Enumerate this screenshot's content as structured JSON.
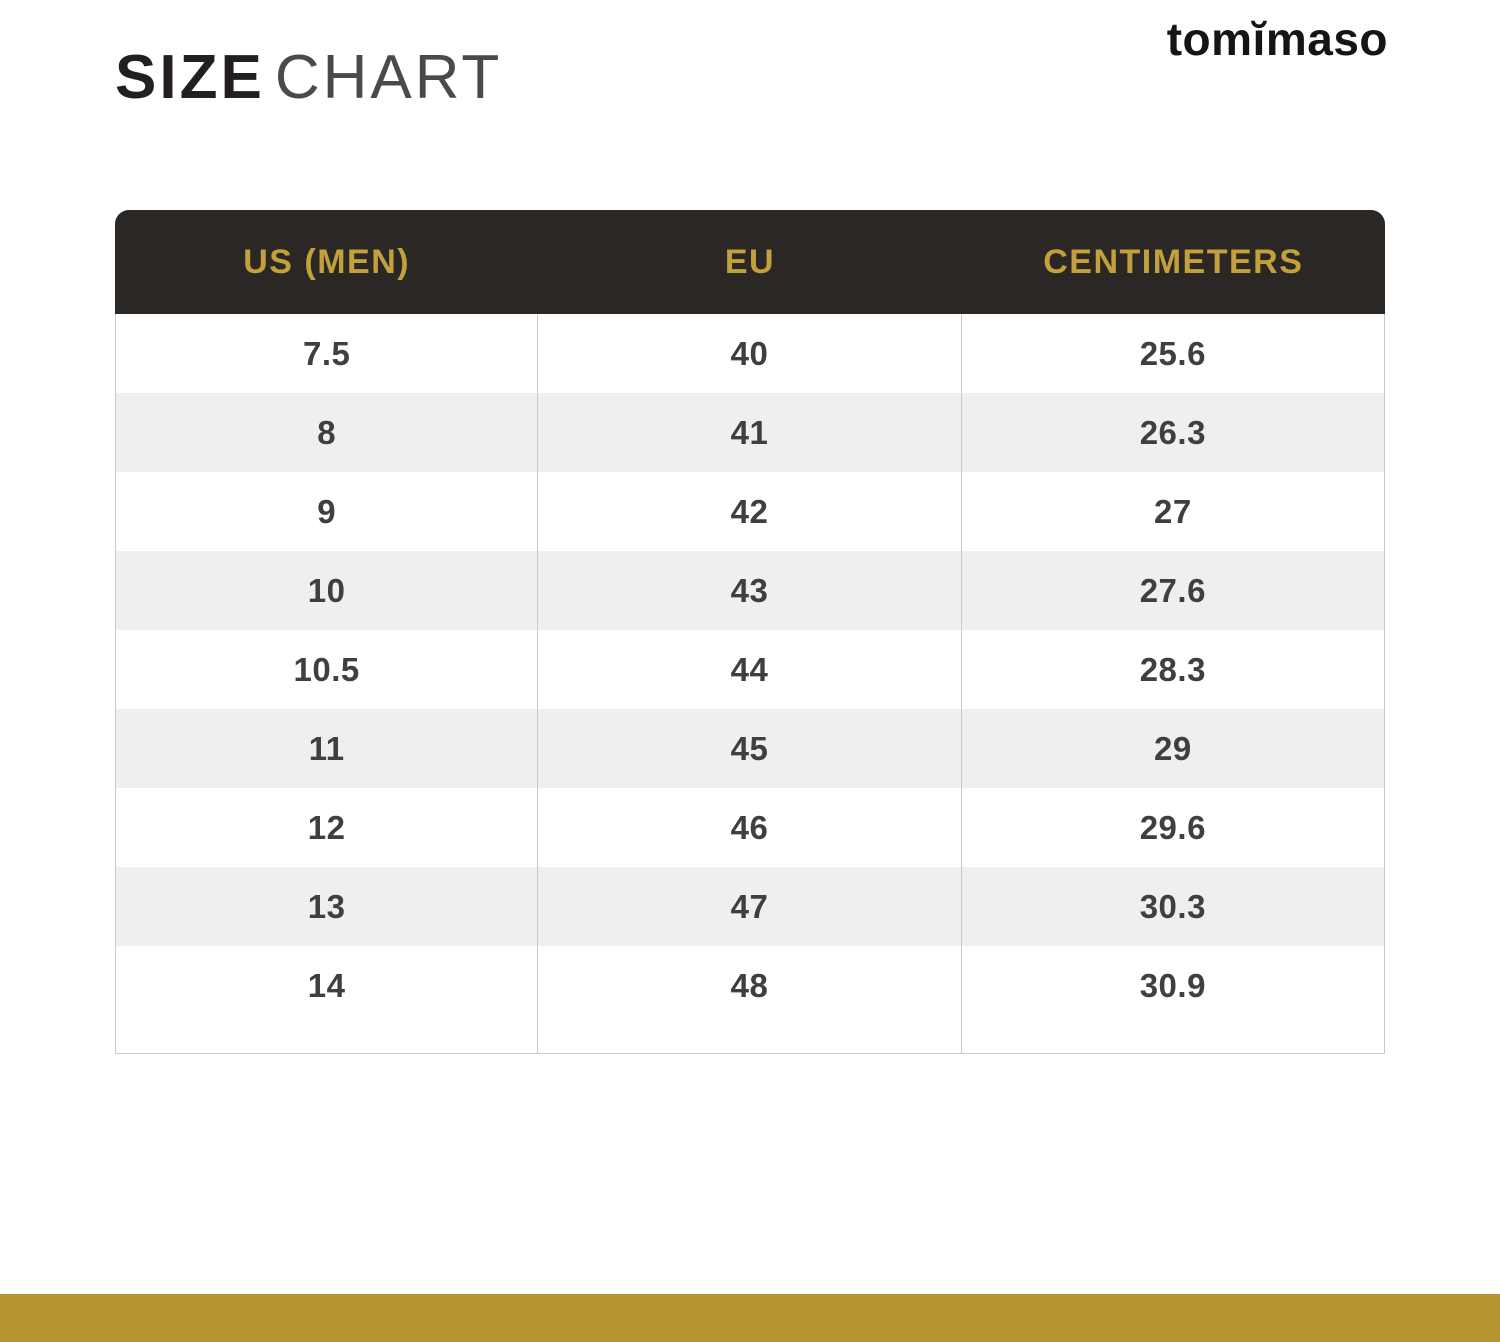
{
  "header": {
    "title_bold": "SIZE",
    "title_light": "CHART",
    "brand": "tomĭmaso"
  },
  "chart_data": {
    "type": "table",
    "title": "SIZE CHART",
    "columns": [
      "US (MEN)",
      "EU",
      "CENTIMETERS"
    ],
    "rows": [
      [
        "7.5",
        "40",
        "25.6"
      ],
      [
        "8",
        "41",
        "26.3"
      ],
      [
        "9",
        "42",
        "27"
      ],
      [
        "10",
        "43",
        "27.6"
      ],
      [
        "10.5",
        "44",
        "28.3"
      ],
      [
        "11",
        "45",
        "29"
      ],
      [
        "12",
        "46",
        "29.6"
      ],
      [
        "13",
        "47",
        "30.3"
      ],
      [
        "14",
        "48",
        "30.9"
      ]
    ],
    "colors": {
      "header_bg": "#2b2724",
      "header_text": "#c2a13c",
      "row_alt_bg": "#efefef",
      "body_text": "#3f3f3f",
      "border": "#c9c9c9",
      "accent_bar": "#b6962e"
    }
  }
}
